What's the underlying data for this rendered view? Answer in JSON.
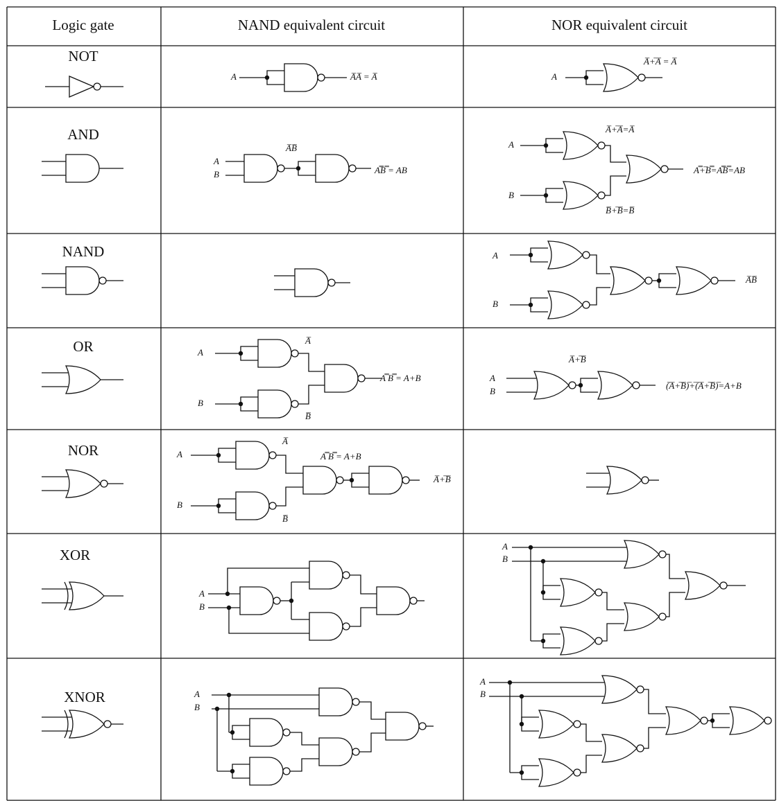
{
  "table": {
    "headers": [
      "Logic gate",
      "NAND equivalent circuit",
      "NOR equivalent circuit"
    ],
    "rows": [
      {
        "gate": "NOT",
        "nand_labels": [
          "A",
          "A̅A̅ = A̅"
        ],
        "nor_labels": [
          "A",
          "A̅+̅A̅ = A̅"
        ]
      },
      {
        "gate": "AND",
        "nand_labels": [
          "A",
          "B",
          "A̅B̅",
          "A̿B̿ = AB"
        ],
        "nor_labels": [
          "A",
          "B",
          "A̅+̅A̅=A̅",
          "B̅+̅B̅=B̅",
          "A̿+̅B̿=A̿B̿=AB"
        ]
      },
      {
        "gate": "NAND",
        "nand_labels": [],
        "nor_labels": [
          "A",
          "B",
          "A̅B̅"
        ]
      },
      {
        "gate": "OR",
        "nand_labels": [
          "A",
          "B",
          "A̅",
          "B̅",
          "A̿ B̿ = A+B"
        ],
        "nor_labels": [
          "A",
          "B",
          "A̅+̅B̅",
          "(̅A̅+̅B̅)̅+̅(̅A̅+̅B̅)̅=A+B"
        ]
      },
      {
        "gate": "NOR",
        "nand_labels": [
          "A",
          "B",
          "A̅",
          "B̅",
          "A̿ B̿ = A+B",
          "A̅+̅B̅"
        ],
        "nor_labels": []
      },
      {
        "gate": "XOR",
        "nand_labels": [
          "A",
          "B"
        ],
        "nor_labels": [
          "A",
          "B"
        ]
      },
      {
        "gate": "XNOR",
        "nand_labels": [
          "A",
          "B"
        ],
        "nor_labels": [
          "A",
          "B"
        ]
      }
    ]
  }
}
